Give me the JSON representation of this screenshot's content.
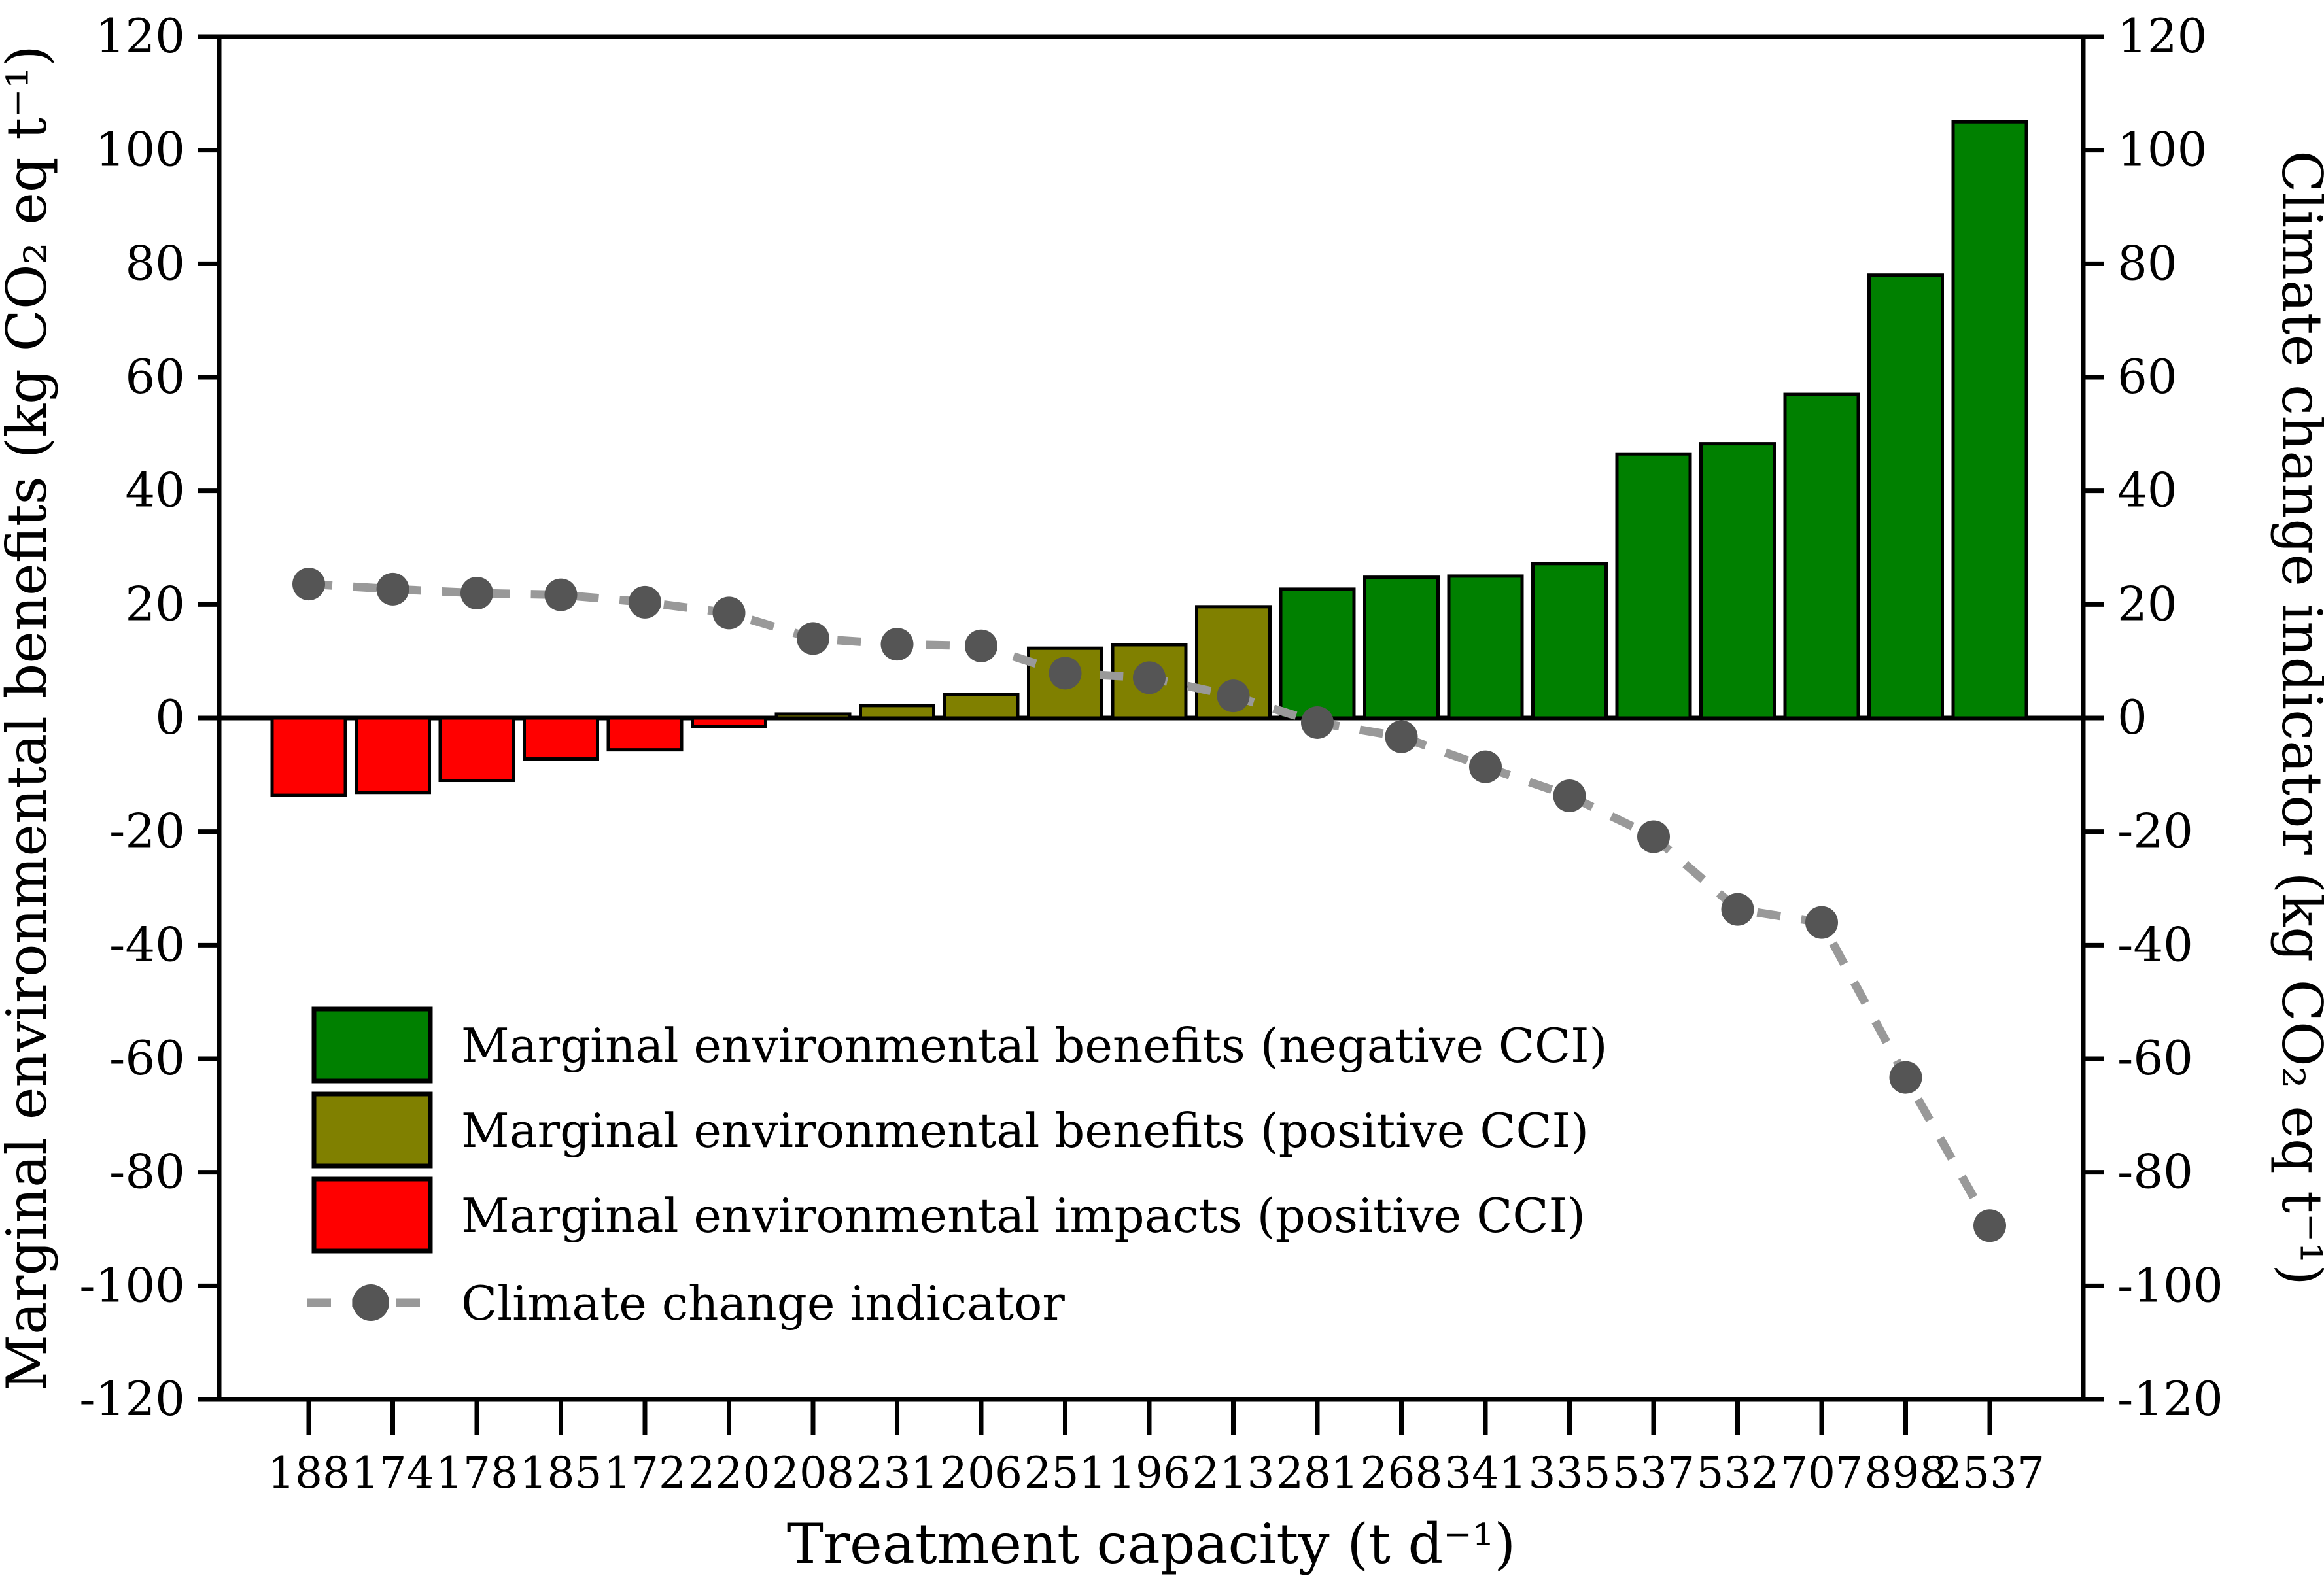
{
  "chart_data": {
    "type": "bar",
    "subtype": "dual-axis-bar-line-combo",
    "categories": [
      "188",
      "174",
      "178",
      "185",
      "172",
      "220",
      "208",
      "231",
      "206",
      "251",
      "196",
      "213",
      "281",
      "268",
      "341",
      "335",
      "537",
      "532",
      "707",
      "898",
      "2537"
    ],
    "series": [
      {
        "name": "Marginal environmental benefits",
        "type": "bar",
        "values": [
          -13.6,
          -13.1,
          -11.0,
          -7.2,
          -5.6,
          -1.5,
          0.7,
          2.2,
          4.2,
          12.3,
          12.9,
          19.6,
          22.7,
          24.8,
          25.0,
          27.2,
          46.5,
          48.3,
          57.0,
          78.0,
          105.0
        ],
        "groups": [
          "impact",
          "impact",
          "impact",
          "impact",
          "impact",
          "impact",
          "benefit_pos",
          "benefit_pos",
          "benefit_pos",
          "benefit_pos",
          "benefit_pos",
          "benefit_pos",
          "benefit_neg",
          "benefit_neg",
          "benefit_neg",
          "benefit_neg",
          "benefit_neg",
          "benefit_neg",
          "benefit_neg",
          "benefit_neg",
          "benefit_neg"
        ],
        "axis": "left"
      },
      {
        "name": "Climate change indicator",
        "type": "line",
        "values": [
          23.6,
          22.7,
          22.0,
          21.7,
          20.4,
          18.5,
          14.0,
          13.0,
          12.7,
          7.9,
          7.1,
          3.9,
          -0.8,
          -3.3,
          -8.6,
          -13.7,
          -20.9,
          -33.7,
          -36.0,
          -63.3,
          -89.4
        ],
        "axis": "right"
      }
    ],
    "colors": {
      "benefit_neg": "#008000",
      "benefit_pos": "#808000",
      "impact": "#ff0000",
      "line_dash": "#999999",
      "point_fill": "#555555",
      "axis": "#000000"
    },
    "left_axis": {
      "label": "Marginal environmental benefits (kg CO₂ eq t⁻¹)",
      "min": -120,
      "max": 120,
      "step": 20,
      "ticks": [
        120,
        100,
        80,
        60,
        40,
        20,
        0,
        -20,
        -40,
        -60,
        -80,
        -100,
        -120
      ]
    },
    "right_axis": {
      "label": "Climate change indicator (kg CO₂ eq t⁻¹)",
      "min": -120,
      "max": 120,
      "step": 20,
      "ticks": [
        120,
        100,
        80,
        60,
        40,
        20,
        0,
        -20,
        -40,
        -60,
        -80,
        -100,
        -120
      ]
    },
    "x_axis": {
      "label": "Treatment capacity (t d⁻¹)"
    },
    "legend": {
      "position": "inside-lower-left",
      "items": [
        {
          "key": "benefit_neg",
          "marker": "swatch",
          "label": "Marginal environmental benefits (negative CCI)"
        },
        {
          "key": "benefit_pos",
          "marker": "swatch",
          "label": "Marginal environmental benefits (positive CCI)"
        },
        {
          "key": "impact",
          "marker": "swatch",
          "label": "Marginal environmental impacts (positive CCI)"
        },
        {
          "key": "cci_line",
          "marker": "dashed-line-dot",
          "label": "Climate change indicator"
        }
      ]
    },
    "grid": false,
    "zero_line": true
  }
}
